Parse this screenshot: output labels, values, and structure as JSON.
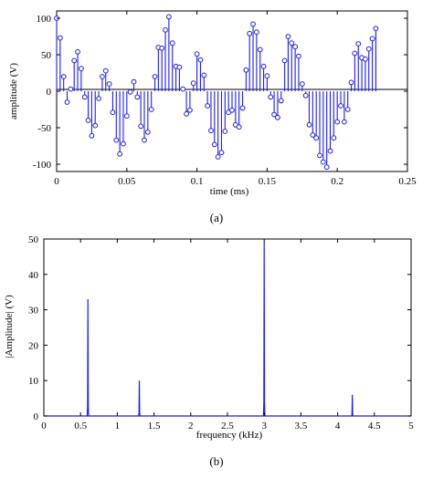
{
  "panel_a": {
    "caption": "(a)",
    "xlabel": "time (ms)",
    "ylabel": "amplitude (V)"
  },
  "panel_b": {
    "caption": "(b)",
    "xlabel": "frequency (kHz)",
    "ylabel": "|Amplitude| (V)"
  },
  "chart_data": [
    {
      "type": "stem",
      "xlabel": "time (ms)",
      "ylabel": "amplitude (V)",
      "xlim": [
        0,
        0.25
      ],
      "ylim": [
        -110,
        110
      ],
      "xticks": [
        0,
        0.05,
        0.1,
        0.15,
        0.2,
        0.25
      ],
      "xtick_labels": [
        "0",
        "0.05",
        "0.1",
        "0.15",
        "0.2",
        "0.25"
      ],
      "yticks": [
        100,
        50,
        0,
        -50,
        -100
      ],
      "ytick_labels": [
        "100",
        "50",
        "0",
        "-50",
        "-100"
      ],
      "sample_interval": 0.0025,
      "values": [
        100,
        73,
        20,
        -15,
        3,
        42,
        54,
        31,
        -8,
        -40,
        -61,
        -47,
        -10,
        20,
        28,
        10,
        -29,
        -67,
        -86,
        -72,
        -34,
        -1,
        13,
        -8,
        -48,
        -67,
        -56,
        -25,
        20,
        60,
        59,
        84,
        102,
        66,
        34,
        33,
        3,
        -31,
        -26,
        11,
        51,
        43,
        22,
        -20,
        -54,
        -73,
        -90,
        -84,
        -55,
        -29,
        -26,
        -46,
        -49,
        -23,
        29,
        79,
        92,
        81,
        57,
        34,
        21,
        -8,
        -32,
        -36,
        -13,
        42,
        75,
        66,
        61,
        48,
        10,
        -6,
        -46,
        -60,
        -64,
        -88,
        -97,
        -104,
        -82,
        -64,
        -42,
        -20,
        -42,
        -25,
        12,
        52,
        65,
        46,
        44,
        58,
        72,
        86
      ]
    },
    {
      "type": "line",
      "xlabel": "frequency (kHz)",
      "ylabel": "|Amplitude| (V)",
      "xlim": [
        0,
        5
      ],
      "ylim": [
        0,
        50
      ],
      "xticks": [
        0,
        0.5,
        1,
        1.5,
        2,
        2.5,
        3,
        3.5,
        4,
        4.5,
        5
      ],
      "xtick_labels": [
        "0",
        "0.5",
        "1",
        "1.5",
        "2",
        "2.5",
        "3",
        "3.5",
        "4",
        "4.5",
        "5"
      ],
      "yticks": [
        0,
        10,
        20,
        30,
        40,
        50
      ],
      "ytick_labels": [
        "0",
        "10",
        "20",
        "30",
        "40",
        "50"
      ],
      "peaks": [
        {
          "frequency": 0.6,
          "amplitude": 33
        },
        {
          "frequency": 1.3,
          "amplitude": 10
        },
        {
          "frequency": 3.0,
          "amplitude": 49
        },
        {
          "frequency": 4.2,
          "amplitude": 6
        }
      ]
    }
  ]
}
